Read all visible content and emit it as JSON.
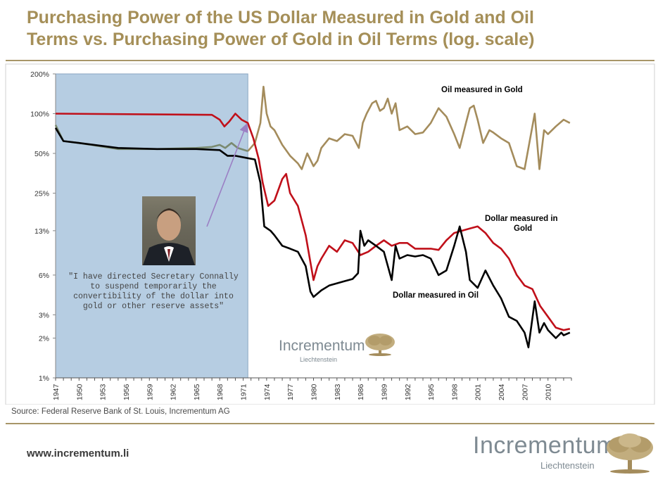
{
  "page": {
    "title_line1": "Purchasing Power of the US Dollar Measured in Gold and Oil",
    "title_line2": "Terms vs. Purchasing Power of Gold in Oil Terms (log. scale)",
    "source": "Source: Federal Reserve Bank of St. Louis, Incrementum AG",
    "url": "www.incrementum.li",
    "brand": "Incrementum",
    "brand_sub": "Liechtenstein",
    "quote_lines": [
      "\"I have directed Secretary Connally",
      "to suspend temporarily the",
      "convertibility of the dollar into",
      "gold or other reserve assets\""
    ],
    "colors": {
      "title": "#a58f58",
      "gold_line": "#a48c5c",
      "red_line": "#c0101a",
      "black_line": "#000000",
      "shade": "#b6cde2",
      "grey_line": "#7a8a70"
    }
  },
  "chart_data": {
    "type": "line",
    "scale": "log",
    "ylim": [
      1,
      200
    ],
    "xlim": [
      1947,
      2013
    ],
    "y_ticks": [
      200,
      100,
      50,
      25,
      13,
      6,
      3,
      2,
      1
    ],
    "y_tick_labels": [
      "200%",
      "100%",
      "50%",
      "25%",
      "13%",
      "6%",
      "3%",
      "2%",
      "1%"
    ],
    "x_tick_labels": [
      "1947",
      "1950",
      "1953",
      "1956",
      "1959",
      "1962",
      "1965",
      "1968",
      "1971",
      "1974",
      "1977",
      "1980",
      "1983",
      "1986",
      "1989",
      "1992",
      "1995",
      "1998",
      "2001",
      "2004",
      "2007",
      "2010"
    ],
    "shaded_period": [
      1947,
      1971.6
    ],
    "series": [
      {
        "name": "Oil measured in Gold",
        "color": "#a48c5c",
        "points": [
          [
            1971.6,
            52
          ],
          [
            1972.5,
            60
          ],
          [
            1973.2,
            85
          ],
          [
            1973.6,
            160
          ],
          [
            1974.0,
            100
          ],
          [
            1974.5,
            80
          ],
          [
            1975,
            75
          ],
          [
            1976,
            58
          ],
          [
            1977,
            48
          ],
          [
            1978,
            42
          ],
          [
            1978.5,
            38
          ],
          [
            1979.2,
            50
          ],
          [
            1980,
            40
          ],
          [
            1980.5,
            44
          ],
          [
            1981,
            55
          ],
          [
            1982,
            65
          ],
          [
            1983,
            62
          ],
          [
            1984,
            70
          ],
          [
            1985,
            68
          ],
          [
            1985.8,
            55
          ],
          [
            1986.3,
            85
          ],
          [
            1986.8,
            100
          ],
          [
            1987.5,
            120
          ],
          [
            1988,
            125
          ],
          [
            1988.5,
            105
          ],
          [
            1989,
            110
          ],
          [
            1989.5,
            130
          ],
          [
            1990,
            100
          ],
          [
            1990.5,
            120
          ],
          [
            1991,
            75
          ],
          [
            1992,
            80
          ],
          [
            1993,
            70
          ],
          [
            1994,
            72
          ],
          [
            1995,
            85
          ],
          [
            1996,
            110
          ],
          [
            1997,
            95
          ],
          [
            1998,
            70
          ],
          [
            1998.7,
            55
          ],
          [
            1999.5,
            85
          ],
          [
            2000,
            110
          ],
          [
            2000.5,
            115
          ],
          [
            2001,
            90
          ],
          [
            2001.7,
            60
          ],
          [
            2002.5,
            75
          ],
          [
            2003,
            72
          ],
          [
            2004,
            65
          ],
          [
            2005,
            60
          ],
          [
            2006,
            40
          ],
          [
            2007,
            38
          ],
          [
            2008.3,
            100
          ],
          [
            2008.9,
            38
          ],
          [
            2009.5,
            75
          ],
          [
            2010,
            70
          ],
          [
            2011,
            80
          ],
          [
            2012,
            90
          ],
          [
            2012.8,
            85
          ]
        ]
      },
      {
        "name": "Dollar measured in Gold",
        "color": "#c0101a",
        "points": [
          [
            1947,
            100
          ],
          [
            1967,
            98
          ],
          [
            1968,
            90
          ],
          [
            1968.6,
            80
          ],
          [
            1969.2,
            87
          ],
          [
            1970,
            100
          ],
          [
            1970.8,
            90
          ],
          [
            1971.6,
            85
          ],
          [
            1972.3,
            65
          ],
          [
            1973,
            45
          ],
          [
            1973.5,
            30
          ],
          [
            1974.2,
            20
          ],
          [
            1975,
            22
          ],
          [
            1976,
            32
          ],
          [
            1976.5,
            35
          ],
          [
            1977,
            25
          ],
          [
            1978,
            20
          ],
          [
            1979,
            12
          ],
          [
            1980,
            5.5
          ],
          [
            1980.5,
            7
          ],
          [
            1981,
            8
          ],
          [
            1982,
            10
          ],
          [
            1983,
            9
          ],
          [
            1984,
            11
          ],
          [
            1985,
            10.5
          ],
          [
            1986,
            8.5
          ],
          [
            1987,
            9
          ],
          [
            1988,
            10
          ],
          [
            1989,
            11
          ],
          [
            1990,
            10
          ],
          [
            1991,
            10.5
          ],
          [
            1992,
            10.5
          ],
          [
            1993,
            9.5
          ],
          [
            1994,
            9.5
          ],
          [
            1995,
            9.5
          ],
          [
            1996,
            9.3
          ],
          [
            1997,
            11
          ],
          [
            1998,
            12.5
          ],
          [
            1999,
            13
          ],
          [
            2000,
            13.5
          ],
          [
            2001,
            14
          ],
          [
            2002,
            12.5
          ],
          [
            2003,
            10.5
          ],
          [
            2004,
            9.5
          ],
          [
            2005,
            8
          ],
          [
            2006,
            6
          ],
          [
            2007,
            5
          ],
          [
            2008,
            4.7
          ],
          [
            2009,
            3.5
          ],
          [
            2010,
            2.9
          ],
          [
            2011,
            2.4
          ],
          [
            2012,
            2.3
          ],
          [
            2012.8,
            2.35
          ]
        ]
      },
      {
        "name": "Dollar measured in Oil",
        "color": "#000000",
        "points": [
          [
            1947,
            78
          ],
          [
            1948,
            62
          ],
          [
            1950,
            60
          ],
          [
            1955,
            55
          ],
          [
            1960,
            54
          ],
          [
            1965,
            54
          ],
          [
            1968,
            53
          ],
          [
            1969,
            48
          ],
          [
            1970,
            48
          ],
          [
            1971.6,
            46
          ],
          [
            1972.5,
            45
          ],
          [
            1973.2,
            30
          ],
          [
            1973.7,
            14
          ],
          [
            1974.5,
            13
          ],
          [
            1975,
            12
          ],
          [
            1976,
            10
          ],
          [
            1977,
            9.5
          ],
          [
            1978,
            9
          ],
          [
            1979,
            7
          ],
          [
            1979.6,
            4.5
          ],
          [
            1980,
            4.1
          ],
          [
            1981,
            4.6
          ],
          [
            1982,
            5
          ],
          [
            1983,
            5.2
          ],
          [
            1984,
            5.4
          ],
          [
            1985,
            5.6
          ],
          [
            1985.7,
            6.2
          ],
          [
            1986,
            13
          ],
          [
            1986.5,
            10
          ],
          [
            1987,
            11
          ],
          [
            1988,
            10
          ],
          [
            1989,
            9
          ],
          [
            1990,
            5.5
          ],
          [
            1990.5,
            10
          ],
          [
            1991,
            8
          ],
          [
            1992,
            8.5
          ],
          [
            1993,
            8.3
          ],
          [
            1994,
            8.5
          ],
          [
            1995,
            8
          ],
          [
            1996,
            6
          ],
          [
            1997,
            6.5
          ],
          [
            1998,
            10
          ],
          [
            1998.7,
            14
          ],
          [
            1999.5,
            9
          ],
          [
            2000,
            5.5
          ],
          [
            2001,
            4.8
          ],
          [
            2002,
            6.5
          ],
          [
            2003,
            5
          ],
          [
            2004,
            4
          ],
          [
            2005,
            2.9
          ],
          [
            2006,
            2.7
          ],
          [
            2007,
            2.2
          ],
          [
            2007.5,
            1.7
          ],
          [
            2008.3,
            3.8
          ],
          [
            2008.9,
            2.2
          ],
          [
            2009.5,
            2.6
          ],
          [
            2010,
            2.3
          ],
          [
            2011,
            2.0
          ],
          [
            2011.7,
            2.2
          ],
          [
            2012,
            2.1
          ],
          [
            2012.8,
            2.2
          ]
        ]
      },
      {
        "name": "",
        "color": "#7a8a70",
        "points": [
          [
            1947,
            82
          ],
          [
            1948,
            62
          ],
          [
            1950,
            60
          ],
          [
            1955,
            54
          ],
          [
            1960,
            54
          ],
          [
            1965,
            55
          ],
          [
            1967,
            56
          ],
          [
            1968,
            58
          ],
          [
            1968.7,
            55
          ],
          [
            1969.5,
            60
          ],
          [
            1970.3,
            55
          ],
          [
            1971.6,
            52
          ]
        ]
      }
    ],
    "annotations": [
      {
        "text_line1": "Oil measured in Gold",
        "text_line2": ""
      },
      {
        "text_line1": "Dollar measured in",
        "text_line2": "Gold"
      },
      {
        "text_line1": "Dollar measured in Oil",
        "text_line2": ""
      }
    ]
  }
}
